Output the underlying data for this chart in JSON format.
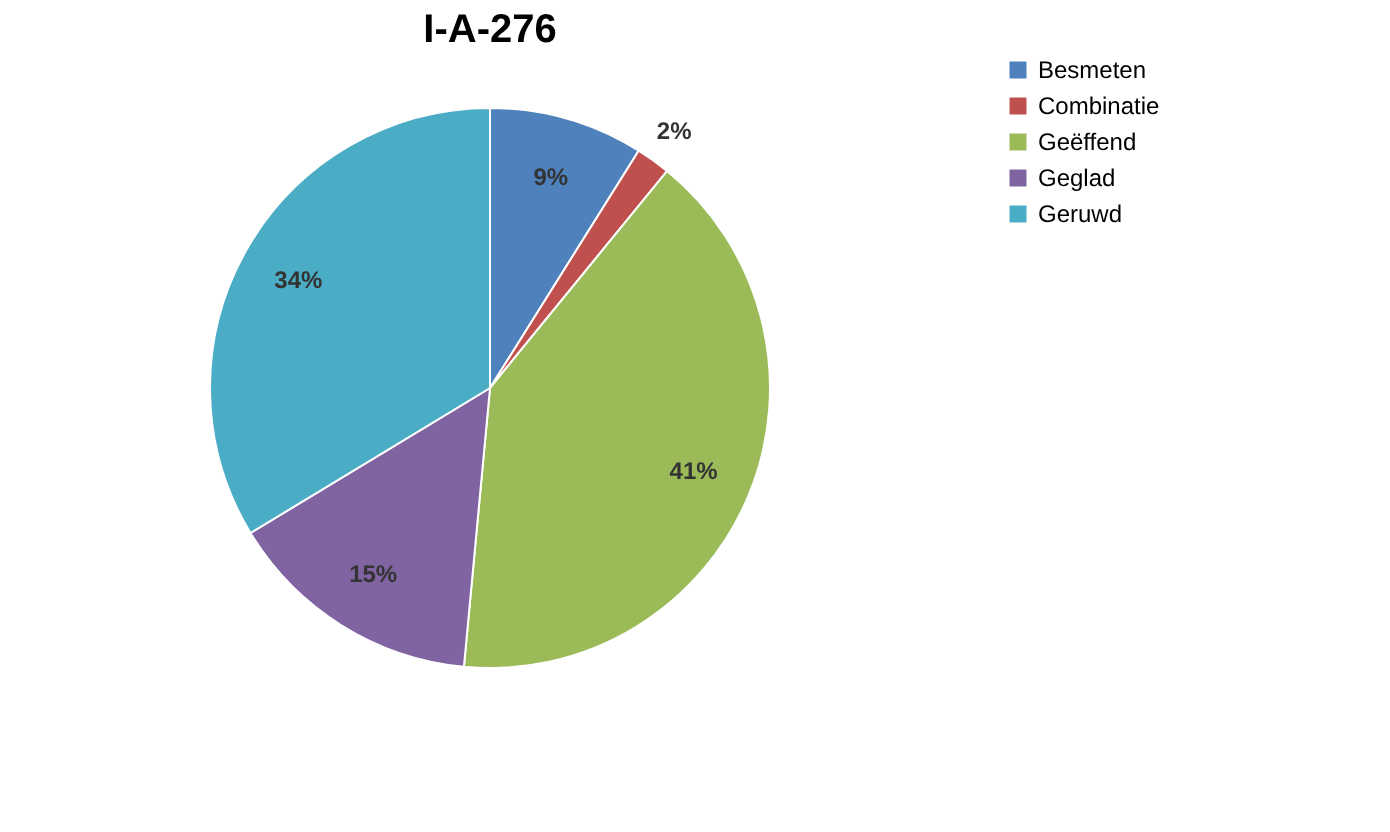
{
  "chart_data": {
    "type": "pie",
    "title": "I-A-276",
    "categories": [
      "Besmeten",
      "Combinatie",
      "Geëffend",
      "Geglad",
      "Geruwd"
    ],
    "values": [
      9,
      2,
      41,
      15,
      34
    ],
    "colors": [
      "#4f81bd",
      "#c0504d",
      "#9bbb59",
      "#8064a2",
      "#4bacc6"
    ],
    "value_labels": [
      "9%",
      "2%",
      "41%",
      "15%",
      "34%"
    ],
    "legend": "right"
  }
}
